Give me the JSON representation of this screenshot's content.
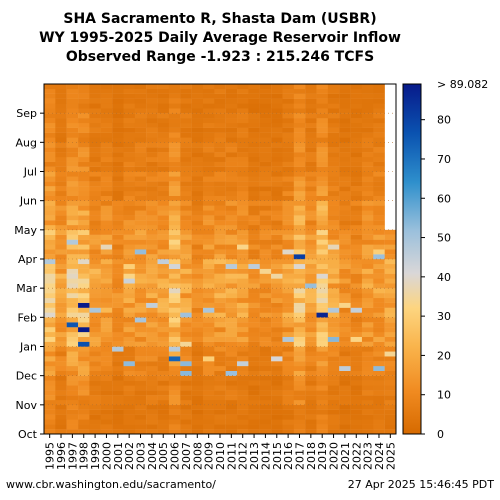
{
  "chart_data": {
    "type": "heatmap",
    "title": [
      "SHA Sacramento R, Shasta Dam (USBR)",
      "WY 1995-2025 Daily Average Reservoir Inflow",
      "Observed Range -1.923 : 215.246 TCFS"
    ],
    "x_tick_labels": [
      "1995",
      "1996",
      "1997",
      "1998",
      "1999",
      "2000",
      "2001",
      "2002",
      "2003",
      "2004",
      "2005",
      "2006",
      "2007",
      "2008",
      "2009",
      "2010",
      "2011",
      "2012",
      "2013",
      "2014",
      "2015",
      "2016",
      "2017",
      "2018",
      "2019",
      "2020",
      "2021",
      "2022",
      "2023",
      "2024",
      "2025"
    ],
    "y_tick_labels": [
      "Oct",
      "Nov",
      "Dec",
      "Jan",
      "Feb",
      "Mar",
      "Apr",
      "May",
      "Jun",
      "Jul",
      "Aug",
      "Sep"
    ],
    "colorbar": {
      "min": 0,
      "max": 89.082,
      "ticks": [
        0,
        10,
        20,
        30,
        40,
        50,
        60,
        70,
        80
      ],
      "max_label": "> 89.082",
      "colors": [
        "#d66a00",
        "#f39a30",
        "#fdd27a",
        "#d8d6d8",
        "#5aa6d8",
        "#0a4aa8",
        "#081a8a"
      ]
    },
    "grid": "dotted",
    "column_profiles": {
      "wet_years": [
        "1995",
        "1997",
        "1998",
        "2006",
        "2017",
        "2019"
      ],
      "dry_years": [
        "2001",
        "2008",
        "2013",
        "2014",
        "2015",
        "2021",
        "2022"
      ],
      "partial_year": "2025",
      "partial_year_last_month": "Apr"
    }
  },
  "footer": {
    "url": "www.cbr.washington.edu/sacramento/",
    "timestamp": "27 Apr 2025 15:46:45 PDT"
  }
}
